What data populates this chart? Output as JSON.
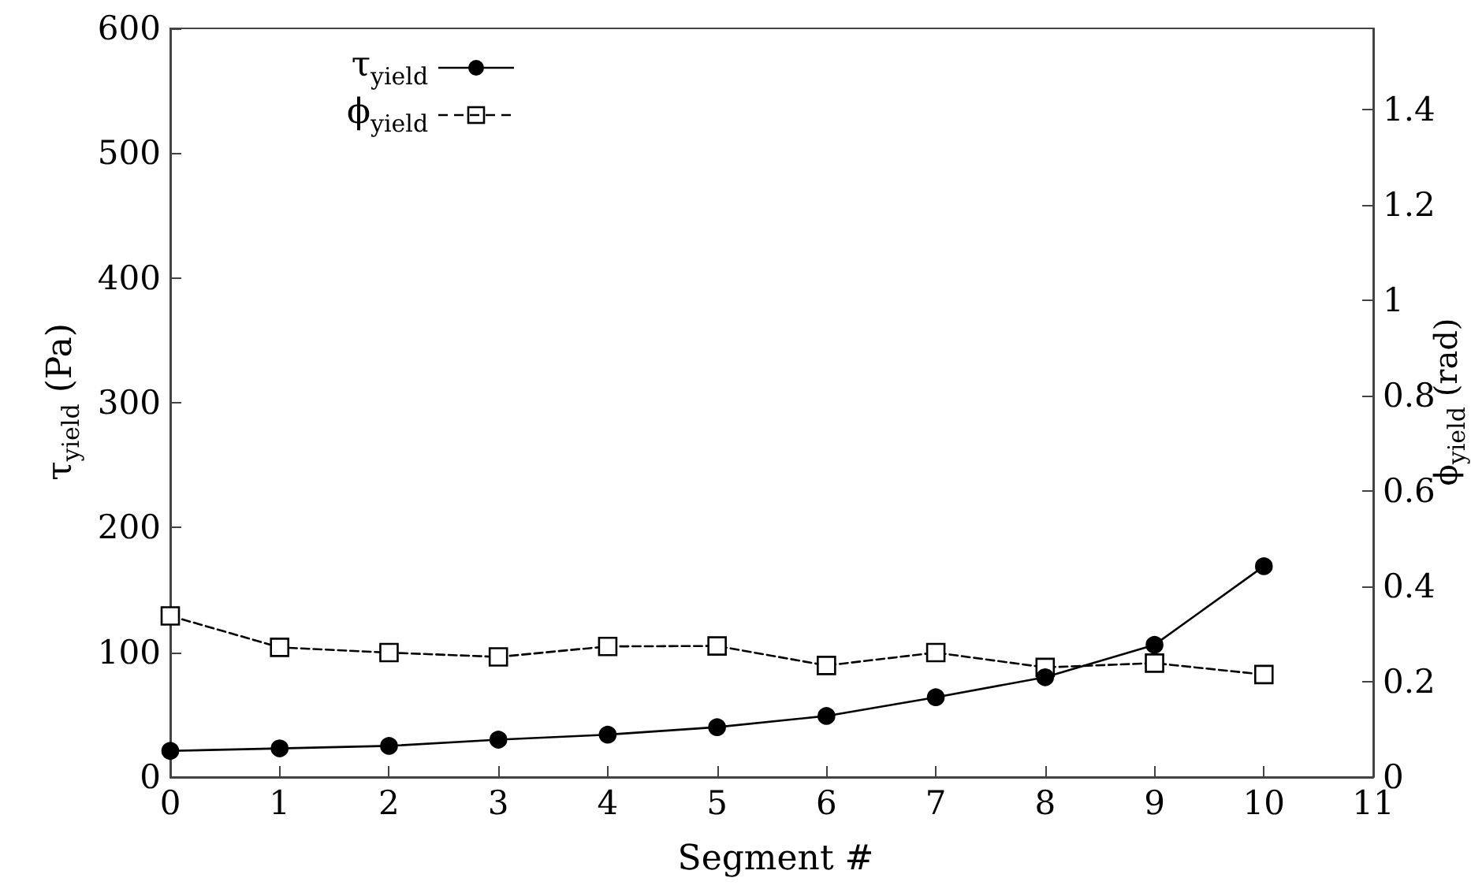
{
  "chart_data": {
    "type": "line",
    "xlabel": "Segment #",
    "ylabel": "τ$_{yield}$ (Pa)",
    "y2label": "ϕ$_{yield}$ (rad)",
    "x": [
      0,
      1,
      2,
      3,
      4,
      5,
      6,
      7,
      8,
      9,
      10
    ],
    "xlim": [
      0,
      11
    ],
    "xticks": [
      0,
      1,
      2,
      3,
      4,
      5,
      6,
      7,
      8,
      9,
      10,
      11
    ],
    "ylim": [
      0,
      600
    ],
    "yticks": [
      0,
      100,
      200,
      300,
      400,
      500,
      600
    ],
    "y2lim": [
      0,
      1.57
    ],
    "y2ticks": [
      0,
      0.2,
      0.4,
      0.6,
      0.8,
      1,
      1.2,
      1.4
    ],
    "legend": "top left",
    "grid": false,
    "series": [
      {
        "name": "τ$_{yield}$",
        "color": "#000000",
        "marker": "circle",
        "line_style": "solid",
        "values": [
          21,
          23,
          25,
          30,
          34,
          40,
          49,
          64,
          80,
          106,
          169
        ]
      },
      {
        "name": "ϕ$_{yield}$",
        "color": "#000000",
        "marker": "square",
        "line_style": "dashed",
        "axis": "y2",
        "values": [
          0.338,
          0.272,
          0.261,
          0.252,
          0.274,
          0.275,
          0.234,
          0.261,
          0.23,
          0.239,
          0.215
        ]
      }
    ]
  }
}
